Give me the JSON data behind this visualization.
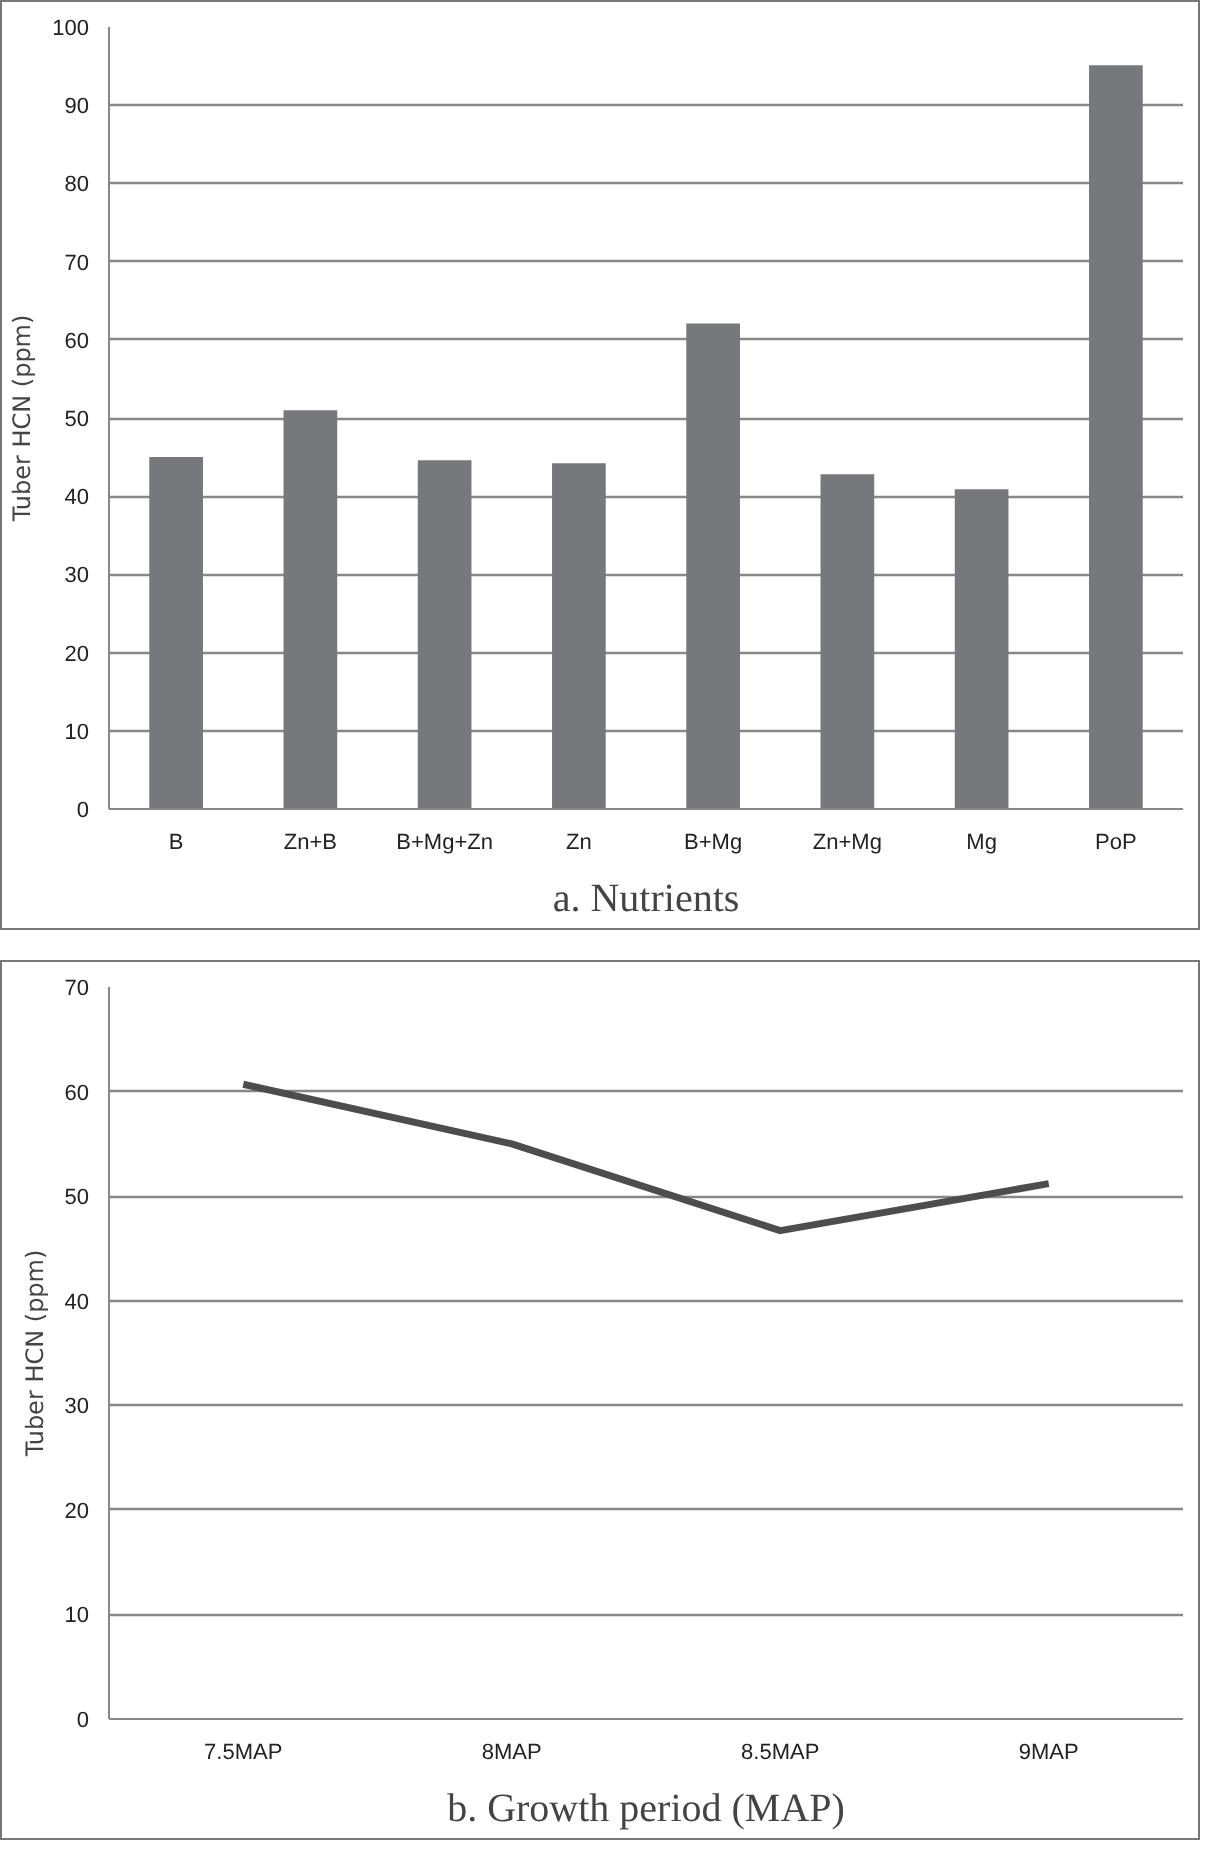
{
  "chart_data": [
    {
      "type": "bar",
      "title": "a. Nutrients",
      "ylabel": "Tuber HCN (ppm)",
      "categories": [
        "B",
        "Zn+B",
        "B+Mg+Zn",
        "Zn",
        "B+Mg",
        "Zn+Mg",
        "Mg",
        "PoP"
      ],
      "values": [
        45,
        51,
        44.6,
        44.2,
        62.1,
        42.8,
        40.9,
        95.1
      ],
      "color": "#77787b",
      "ylim": [
        0,
        100
      ],
      "yticks": [
        0,
        10,
        20,
        30,
        40,
        50,
        60,
        70,
        80,
        90,
        100
      ],
      "grid": "y"
    },
    {
      "type": "line",
      "title": "b. Growth period (MAP)",
      "ylabel": "Tuber HCN (ppm)",
      "categories": [
        "7.5MAP",
        "8MAP",
        "8.5MAP",
        "9MAP"
      ],
      "values": [
        60.7,
        55,
        46.7,
        51.2
      ],
      "color": "#4d4d4f",
      "ylim": [
        0,
        70
      ],
      "yticks": [
        0,
        10,
        20,
        30,
        40,
        50,
        60,
        70
      ],
      "grid": "y"
    }
  ]
}
